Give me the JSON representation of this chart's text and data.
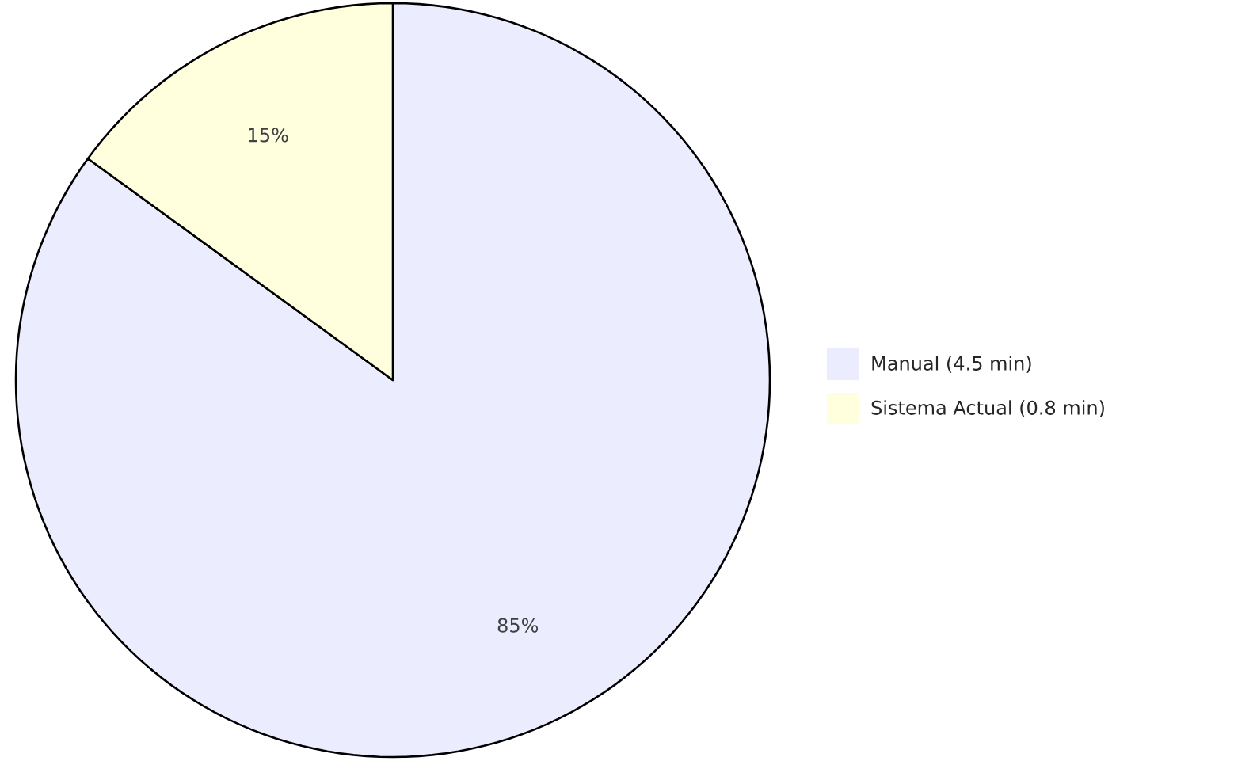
{
  "chart_data": {
    "type": "pie",
    "categories": [
      "Manual (4.5 min)",
      "Sistema Actual (0.8 min)"
    ],
    "values": [
      85,
      15
    ],
    "colors": [
      "#ececff",
      "#ffffde"
    ],
    "value_labels": [
      "85%",
      "15%"
    ],
    "legend": "right"
  }
}
